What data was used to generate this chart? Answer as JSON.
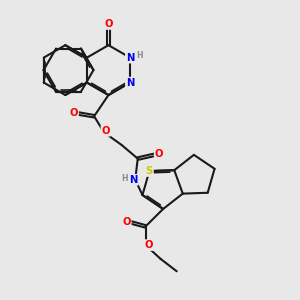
{
  "background_color": "#e8e8e8",
  "bond_color": "#1a1a1a",
  "bond_width": 1.5,
  "atom_colors": {
    "O": "#ff0000",
    "N": "#0000ee",
    "S": "#cccc00",
    "H": "#888888",
    "C": "#1a1a1a"
  },
  "figsize": [
    3.0,
    3.0
  ],
  "dpi": 100
}
